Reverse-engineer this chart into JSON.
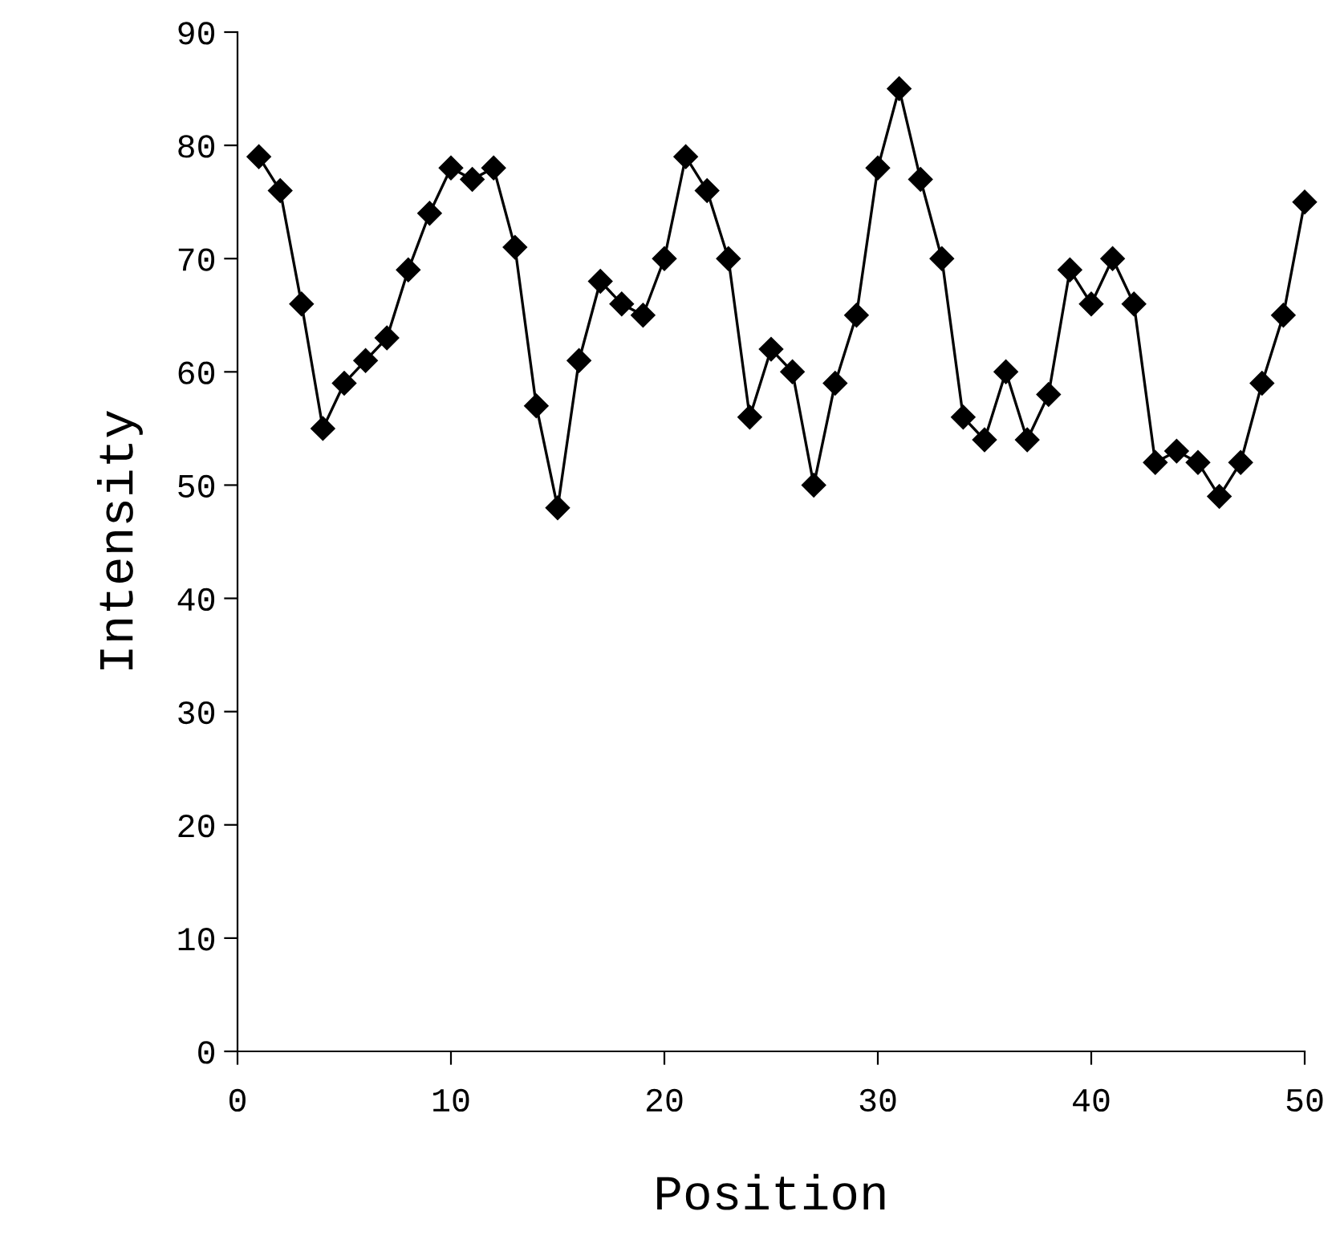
{
  "chart_data": {
    "type": "line",
    "xlabel": "Position",
    "ylabel": "Intensity",
    "x": [
      1,
      2,
      3,
      4,
      5,
      6,
      7,
      8,
      9,
      10,
      11,
      12,
      13,
      14,
      15,
      16,
      17,
      18,
      19,
      20,
      21,
      22,
      23,
      24,
      25,
      26,
      27,
      28,
      29,
      30,
      31,
      32,
      33,
      34,
      35,
      36,
      37,
      38,
      39,
      40,
      41,
      42,
      43,
      44,
      45,
      46,
      47,
      48,
      49,
      50
    ],
    "series": [
      {
        "color": "#000000",
        "values": [
          79,
          76,
          66,
          55,
          59,
          61,
          63,
          69,
          74,
          78,
          77,
          78,
          71,
          57,
          48,
          61,
          68,
          66,
          65,
          70,
          79,
          76,
          70,
          56,
          62,
          60,
          50,
          59,
          65,
          78,
          85,
          77,
          70,
          56,
          54,
          60,
          54,
          58,
          69,
          66,
          70,
          66,
          52,
          53,
          52,
          49,
          52,
          59,
          65,
          75
        ]
      }
    ],
    "xlim": [
      0,
      50
    ],
    "xticks": [
      0,
      10,
      20,
      30,
      40,
      50
    ],
    "ylim": [
      0,
      90
    ],
    "yticks": [
      0,
      10,
      20,
      30,
      40,
      50,
      60,
      70,
      80,
      90
    ],
    "grid": false,
    "legend": false,
    "marker": "diamond",
    "line_style": "solid"
  }
}
